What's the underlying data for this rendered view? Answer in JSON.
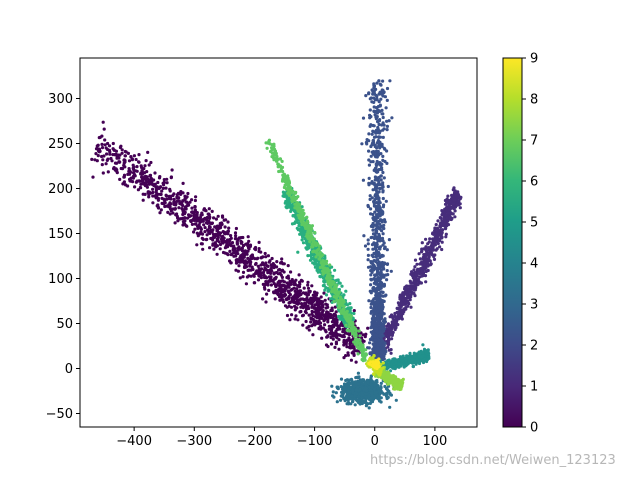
{
  "chart_data": {
    "type": "scatter",
    "title": "",
    "xlabel": "",
    "ylabel": "",
    "xlim": [
      -490,
      170
    ],
    "ylim": [
      -65,
      345
    ],
    "xticks": [
      -400,
      -300,
      -200,
      -100,
      0,
      100
    ],
    "xtick_labels": [
      "−400",
      "−300",
      "−200",
      "−100",
      "0",
      "100"
    ],
    "yticks": [
      -50,
      0,
      50,
      100,
      150,
      200,
      250,
      300
    ],
    "ytick_labels": [
      "−50",
      "0",
      "50",
      "100",
      "150",
      "200",
      "250",
      "300"
    ],
    "colormap": "viridis",
    "colorbar": {
      "range": [
        0,
        9
      ],
      "ticks": [
        0,
        1,
        2,
        3,
        4,
        5,
        6,
        7,
        8,
        9
      ],
      "tick_labels": [
        "0",
        "1",
        "2",
        "3",
        "4",
        "5",
        "6",
        "7",
        "8",
        "9"
      ]
    },
    "grid": false,
    "legend": "none",
    "clusters": [
      {
        "class": 0,
        "color": "#440154",
        "shape": "line",
        "from": [
          -465,
          250
        ],
        "to": [
          -20,
          25
        ],
        "spread": 10,
        "count": 1400
      },
      {
        "class": 1,
        "color": "#472d7b",
        "shape": "line",
        "from": [
          5,
          15
        ],
        "to": [
          140,
          195
        ],
        "spread": 5,
        "count": 700
      },
      {
        "class": 2,
        "color": "#3b528b",
        "shape": "vertical",
        "center_x": 5,
        "y_range": [
          10,
          320
        ],
        "spread": 8,
        "count": 1300
      },
      {
        "class": 3,
        "color": "#2c728e",
        "shape": "blob",
        "center": [
          -20,
          -25
        ],
        "extent": [
          35,
          12
        ],
        "count": 700
      },
      {
        "class": 4,
        "color": "#21918c",
        "shape": "line",
        "from": [
          0,
          0
        ],
        "to": [
          90,
          15
        ],
        "spread": 3,
        "count": 400
      },
      {
        "class": 5,
        "color": "#28ae80",
        "shape": "line",
        "from": [
          -150,
          200
        ],
        "to": [
          -40,
          50
        ],
        "spread": 5,
        "count": 700
      },
      {
        "class": 6,
        "color": "#5ec962",
        "shape": "line",
        "from": [
          -180,
          258
        ],
        "to": [
          -15,
          10
        ],
        "spread": 3,
        "count": 500
      },
      {
        "class": 7,
        "color": "#8ed542",
        "shape": "line",
        "from": [
          0,
          0
        ],
        "to": [
          45,
          -20
        ],
        "spread": 3,
        "count": 300
      },
      {
        "class": 8,
        "color": "#c2df23",
        "shape": "line",
        "from": [
          -10,
          10
        ],
        "to": [
          10,
          -5
        ],
        "spread": 3,
        "count": 120
      },
      {
        "class": 9,
        "color": "#fde725",
        "shape": "blob",
        "center": [
          2,
          4
        ],
        "extent": [
          8,
          4
        ],
        "count": 60
      }
    ]
  },
  "watermark": "https://blog.csdn.net/Weiwen_123123"
}
